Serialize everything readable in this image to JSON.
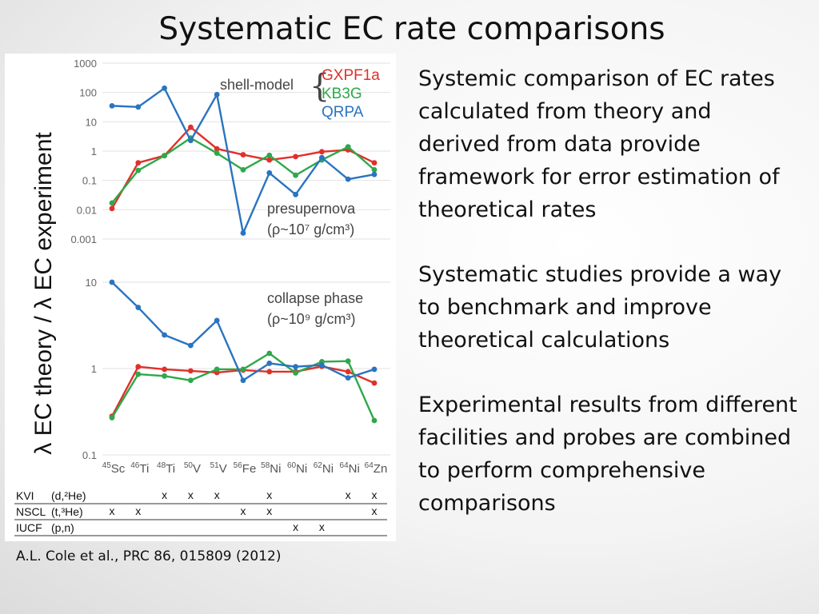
{
  "slide": {
    "title": "Systematic EC rate comparisons",
    "citation": "A.L. Cole et al., PRC 86, 015809 (2012)",
    "bullets": [
      "Systemic comparison of EC rates calculated from theory and derived from data provide framework for error estimation of theoretical rates",
      "Systematic studies provide a way to benchmark and improve theoretical calculations",
      "Experimental results from different facilities and probes are combined to perform comprehensive comparisons"
    ]
  },
  "chart_data": {
    "type": "line",
    "categories": [
      "45Sc",
      "46Ti",
      "48Ti",
      "50V",
      "51V",
      "56Fe",
      "58Ni",
      "60Ni",
      "62Ni",
      "64Ni",
      "64Zn"
    ],
    "category_labels": [
      {
        "sup": "45",
        "el": "Sc"
      },
      {
        "sup": "46",
        "el": "Ti"
      },
      {
        "sup": "48",
        "el": "Ti"
      },
      {
        "sup": "50",
        "el": "V"
      },
      {
        "sup": "51",
        "el": "V"
      },
      {
        "sup": "56",
        "el": "Fe"
      },
      {
        "sup": "58",
        "el": "Ni"
      },
      {
        "sup": "60",
        "el": "Ni"
      },
      {
        "sup": "62",
        "el": "Ni"
      },
      {
        "sup": "64",
        "el": "Ni"
      },
      {
        "sup": "64",
        "el": "Zn"
      }
    ],
    "ylabel": "λ EC theory / λ EC experiment",
    "legend": {
      "group_label": "shell-model",
      "location": "top-right",
      "entries": [
        {
          "name": "GXPF1a",
          "color": "#e0302a"
        },
        {
          "name": "KB3G",
          "color": "#2ea84a"
        },
        {
          "name": "QRPA",
          "color": "#2a74c0"
        }
      ]
    },
    "panels": [
      {
        "label_line1": "presupernova",
        "label_line2": "(ρ~10⁷ g/cm³)",
        "scale": "log",
        "ylim": [
          0.001,
          1000
        ],
        "yticks": [
          "1000",
          "100",
          "10",
          "1",
          "0.1",
          "0.01",
          "0.001"
        ],
        "series": [
          {
            "name": "GXPF1a",
            "color": "#e0302a",
            "values": [
              0.011,
              0.4,
              0.7,
              6.5,
              1.2,
              0.75,
              0.5,
              0.65,
              0.95,
              1.1,
              0.4
            ]
          },
          {
            "name": "KB3G",
            "color": "#2ea84a",
            "values": [
              0.017,
              0.22,
              0.7,
              2.8,
              0.85,
              0.23,
              0.72,
              0.15,
              0.5,
              1.4,
              0.23
            ]
          },
          {
            "name": "QRPA",
            "color": "#2a74c0",
            "values": [
              35,
              32,
              140,
              2.3,
              85,
              0.0016,
              0.18,
              0.033,
              0.6,
              0.11,
              0.16
            ]
          }
        ]
      },
      {
        "label_line1": "collapse phase",
        "label_line2": "(ρ~10⁹ g/cm³)",
        "scale": "log",
        "ylim": [
          0.1,
          10
        ],
        "yticks": [
          "10",
          "1",
          "0.1"
        ],
        "series": [
          {
            "name": "GXPF1a",
            "color": "#e0302a",
            "values": [
              0.28,
              1.05,
              0.98,
              0.94,
              0.9,
              0.96,
              0.92,
              0.92,
              1.06,
              0.92,
              0.68
            ]
          },
          {
            "name": "KB3G",
            "color": "#2ea84a",
            "values": [
              0.27,
              0.86,
              0.82,
              0.73,
              0.98,
              0.98,
              1.5,
              0.89,
              1.2,
              1.22,
              0.25
            ]
          },
          {
            "name": "QRPA",
            "color": "#2a74c0",
            "values": [
              10,
              5.1,
              2.45,
              1.85,
              3.6,
              0.73,
              1.15,
              1.05,
              1.1,
              0.78,
              0.98
            ]
          }
        ]
      }
    ],
    "experiments": [
      {
        "facility": "KVI",
        "probe": "(d,²He)",
        "marks": [
          false,
          false,
          true,
          true,
          true,
          false,
          true,
          false,
          false,
          true,
          true
        ]
      },
      {
        "facility": "NSCL",
        "probe": "(t,³He)",
        "marks": [
          true,
          true,
          false,
          false,
          false,
          true,
          true,
          false,
          false,
          false,
          true
        ]
      },
      {
        "facility": "IUCF",
        "probe": "(p,n)",
        "marks": [
          false,
          false,
          false,
          false,
          false,
          false,
          false,
          true,
          true,
          false,
          false
        ]
      }
    ],
    "mark_symbol": "x"
  }
}
